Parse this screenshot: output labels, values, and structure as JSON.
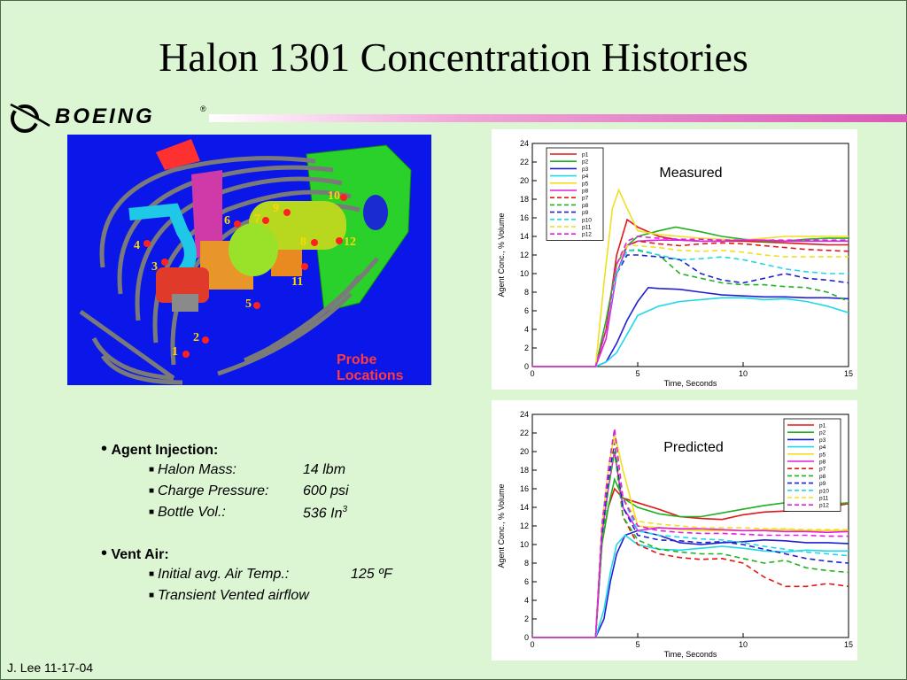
{
  "slide": {
    "title": "Halon 1301 Concentration Histories",
    "brand": "BOEING",
    "footer": "J. Lee 11-17-04"
  },
  "model_view": {
    "caption": "Probe Locations",
    "probes": [
      "1",
      "2",
      "3",
      "4",
      "5",
      "6",
      "7",
      "8",
      "9",
      "10",
      "11",
      "12"
    ],
    "colors": {
      "background": "#0a17e8",
      "probe": "#ff2020",
      "label": "#ffd700"
    }
  },
  "bullets": {
    "agent_injection": {
      "label": "Agent Injection:",
      "items": [
        {
          "name": "Halon Mass:",
          "value": "14 lbm"
        },
        {
          "name": "Charge Pressure:",
          "value": "600 psi"
        },
        {
          "name": "Bottle Vol.:",
          "value": "536 In",
          "sup": "3"
        }
      ]
    },
    "vent_air": {
      "label": "Vent Air:",
      "items": [
        {
          "name": "Initial avg. Air Temp.:",
          "value": "125 ºF"
        },
        {
          "name": "Transient Vented airflow",
          "value": ""
        }
      ]
    }
  },
  "chart_data": [
    {
      "type": "line",
      "title": "Measured",
      "xlabel": "Time, Seconds",
      "ylabel": "Agent Conc., % Volume",
      "xlim": [
        0,
        15
      ],
      "ylim": [
        0,
        24
      ],
      "xticks": [
        0,
        5,
        10,
        15
      ],
      "yticks": [
        0,
        2,
        4,
        6,
        8,
        10,
        12,
        14,
        16,
        18,
        20,
        22,
        24
      ],
      "legend_position": "top-left",
      "series": [
        {
          "name": "p1",
          "color": "#e01818",
          "dash": "solid",
          "x": [
            0,
            3,
            3.5,
            4,
            4.5,
            5,
            6,
            7,
            8,
            9,
            10,
            11,
            12,
            13,
            14,
            15
          ],
          "y": [
            0,
            0,
            4,
            12,
            15.8,
            15,
            14,
            13.6,
            13.5,
            13.5,
            13.5,
            13.4,
            13.3,
            13.2,
            13.1,
            13.1
          ]
        },
        {
          "name": "p2",
          "color": "#20b020",
          "dash": "solid",
          "x": [
            0,
            3,
            3.5,
            4,
            4.5,
            5,
            6,
            6.8,
            8,
            9,
            10,
            11,
            12,
            13,
            14,
            15
          ],
          "y": [
            0,
            0,
            5,
            11,
            13,
            14,
            14.6,
            15,
            14.5,
            14,
            13.7,
            13.5,
            13.5,
            13.7,
            13.8,
            13.8
          ]
        },
        {
          "name": "p3",
          "color": "#2020d0",
          "dash": "solid",
          "x": [
            0,
            3,
            3.5,
            4,
            4.5,
            5,
            5.5,
            6,
            7,
            8,
            9,
            10,
            11,
            12,
            13,
            14,
            15
          ],
          "y": [
            0,
            0,
            0.5,
            2.5,
            5,
            7,
            8.5,
            8.4,
            8.3,
            8,
            7.7,
            7.6,
            7.5,
            7.5,
            7.4,
            7.4,
            7.3
          ]
        },
        {
          "name": "p4",
          "color": "#20d8e8",
          "dash": "solid",
          "x": [
            0,
            3,
            3.5,
            4,
            4.5,
            5,
            6,
            7,
            8,
            9,
            10,
            11,
            12,
            13,
            14,
            15
          ],
          "y": [
            0,
            0,
            0.5,
            1.5,
            3.5,
            5.5,
            6.5,
            7,
            7.2,
            7.4,
            7.4,
            7.2,
            7.3,
            7,
            6.5,
            5.8
          ]
        },
        {
          "name": "p5",
          "color": "#f0e020",
          "dash": "solid",
          "x": [
            0,
            3,
            3.4,
            3.8,
            4.1,
            4.5,
            5,
            6,
            7,
            8,
            9,
            10,
            11,
            12,
            13,
            14,
            15
          ],
          "y": [
            0,
            0,
            9,
            17,
            19,
            17,
            14.6,
            14.2,
            14,
            13.8,
            13.7,
            13.6,
            13.8,
            14,
            14,
            14,
            14
          ]
        },
        {
          "name": "p8",
          "color": "#e020e0",
          "dash": "solid",
          "x": [
            0,
            3,
            3.5,
            4,
            4.5,
            5,
            6,
            7,
            8,
            9,
            10,
            11,
            12,
            13,
            14,
            15
          ],
          "y": [
            0,
            0,
            3,
            10,
            13,
            13.5,
            13.6,
            13.6,
            13.5,
            13.5,
            13.6,
            13.6,
            13.5,
            13.5,
            13.5,
            13.5
          ]
        },
        {
          "name": "p7",
          "color": "#e01818",
          "dash": "dashed",
          "x": [
            0,
            3,
            3.5,
            4,
            4.5,
            5,
            6,
            7,
            8,
            9,
            10,
            11,
            12,
            13,
            14,
            15
          ],
          "y": [
            0,
            0,
            4,
            11,
            13,
            13.5,
            13.2,
            13,
            13.2,
            13.3,
            13.2,
            13,
            12.8,
            12.6,
            12.5,
            12.4
          ]
        },
        {
          "name": "p8",
          "color": "#20b020",
          "dash": "dashed",
          "x": [
            0,
            3,
            3.5,
            4,
            4.5,
            5,
            6,
            7,
            8,
            9,
            10,
            11,
            12,
            13,
            14,
            15
          ],
          "y": [
            0,
            0,
            4,
            10,
            12.5,
            12.5,
            12,
            10,
            9.5,
            9,
            8.8,
            8.8,
            8.6,
            8.5,
            8,
            7
          ]
        },
        {
          "name": "p9",
          "color": "#2020d0",
          "dash": "dashed",
          "x": [
            0,
            3,
            3.5,
            4,
            4.5,
            5,
            6,
            7,
            8,
            9,
            10,
            11,
            12,
            13,
            14,
            15
          ],
          "y": [
            0,
            0,
            4,
            10,
            12,
            12,
            11.8,
            11.5,
            10,
            9.3,
            9,
            9.5,
            10,
            9.5,
            9.3,
            9
          ]
        },
        {
          "name": "p10",
          "color": "#20d8e8",
          "dash": "dashed",
          "x": [
            0,
            3,
            3.5,
            4,
            4.5,
            5,
            6,
            7,
            8,
            9,
            10,
            11,
            12,
            13,
            14,
            15
          ],
          "y": [
            0,
            0,
            4,
            10,
            12.5,
            12.6,
            12,
            11.5,
            11.6,
            11.8,
            11.5,
            11,
            10.5,
            10.2,
            10,
            10
          ]
        },
        {
          "name": "p11",
          "color": "#f0e020",
          "dash": "dashed",
          "x": [
            0,
            3,
            3.5,
            4,
            4.5,
            5,
            6,
            7,
            8,
            9,
            10,
            11,
            12,
            13,
            14,
            15
          ],
          "y": [
            0,
            0,
            4,
            11,
            13,
            13,
            12.8,
            12.5,
            12.4,
            12.5,
            12.3,
            12,
            11.8,
            11.8,
            11.8,
            11.8
          ]
        },
        {
          "name": "p12",
          "color": "#e020e0",
          "dash": "dashed",
          "x": [
            0,
            3,
            3.5,
            4,
            4.5,
            5,
            6,
            7,
            8,
            9,
            10,
            11,
            12,
            13,
            14,
            15
          ],
          "y": [
            0,
            0,
            4,
            11,
            13.5,
            14,
            13.8,
            13.7,
            13.7,
            13.6,
            13.6,
            13.6,
            13.6,
            13.6,
            13.6,
            13.6
          ]
        }
      ]
    },
    {
      "type": "line",
      "title": "Predicted",
      "xlabel": "Time, Seconds",
      "ylabel": "Agent Conc., % Volume",
      "xlim": [
        0,
        15
      ],
      "ylim": [
        0,
        24
      ],
      "xticks": [
        0,
        5,
        10,
        15
      ],
      "yticks": [
        0,
        2,
        4,
        6,
        8,
        10,
        12,
        14,
        16,
        18,
        20,
        22,
        24
      ],
      "legend_position": "top-right",
      "series": [
        {
          "name": "p1",
          "color": "#e01818",
          "dash": "solid",
          "x": [
            0,
            3,
            3.3,
            3.6,
            3.9,
            4.3,
            5,
            6,
            7,
            8,
            9,
            10,
            11,
            12,
            13,
            14,
            15
          ],
          "y": [
            0,
            0,
            10,
            14,
            16,
            15,
            14.5,
            13.8,
            13,
            12.8,
            12.7,
            13.2,
            13.5,
            13.6,
            13.8,
            14,
            14.4
          ]
        },
        {
          "name": "p2",
          "color": "#20b020",
          "dash": "solid",
          "x": [
            0,
            3,
            3.3,
            3.6,
            3.9,
            4.3,
            5,
            6,
            7,
            8,
            9,
            10,
            11,
            12,
            13,
            14,
            15
          ],
          "y": [
            0,
            0,
            10,
            14,
            17,
            15,
            14,
            13.3,
            13,
            13,
            13.4,
            13.8,
            14.2,
            14.5,
            14.4,
            14.3,
            14.5
          ]
        },
        {
          "name": "p3",
          "color": "#2020d0",
          "dash": "solid",
          "x": [
            0,
            3,
            3.4,
            3.7,
            4,
            4.4,
            5,
            6,
            7,
            8,
            9,
            10,
            11,
            12,
            13,
            14,
            15
          ],
          "y": [
            0,
            0,
            2,
            6,
            9,
            11,
            11.5,
            11,
            10.2,
            10,
            10.2,
            10.3,
            10.5,
            10.4,
            10.2,
            10.2,
            10.1
          ]
        },
        {
          "name": "p4",
          "color": "#20d8e8",
          "dash": "solid",
          "x": [
            0,
            3,
            3.4,
            3.7,
            4,
            4.4,
            5,
            6,
            7,
            8,
            9,
            10,
            11,
            12,
            13,
            14,
            15
          ],
          "y": [
            0,
            0,
            3,
            7,
            10,
            11,
            10,
            9.5,
            9.4,
            9.6,
            9.8,
            9.6,
            9.3,
            9.2,
            9.4,
            9.3,
            9.3
          ]
        },
        {
          "name": "p5",
          "color": "#f0e020",
          "dash": "solid",
          "x": [
            0,
            3,
            3.3,
            3.6,
            3.9,
            4.3,
            5,
            6,
            7,
            8,
            9,
            10,
            11,
            12,
            13,
            14,
            15
          ],
          "y": [
            0,
            0,
            12,
            18,
            22,
            18,
            12,
            11.8,
            11.6,
            11.5,
            11.5,
            11.5,
            11.6,
            11.6,
            11.5,
            11.5,
            11.5
          ]
        },
        {
          "name": "p8",
          "color": "#e020e0",
          "dash": "solid",
          "x": [
            0,
            3,
            3.3,
            3.6,
            3.9,
            4.3,
            5,
            6,
            7,
            8,
            9,
            10,
            11,
            12,
            13,
            14,
            15
          ],
          "y": [
            0,
            0,
            11,
            16,
            20,
            14,
            11.5,
            11.8,
            11.7,
            11.7,
            11.6,
            11.5,
            11.5,
            11.4,
            11.4,
            11.3,
            11.4
          ]
        },
        {
          "name": "p7",
          "color": "#e01818",
          "dash": "dashed",
          "x": [
            0,
            3,
            3.3,
            3.6,
            3.9,
            4.3,
            5,
            6,
            7,
            8,
            9,
            10,
            11,
            12,
            13,
            14,
            15
          ],
          "y": [
            0,
            0,
            11,
            17,
            21,
            13,
            10,
            9,
            8.6,
            8.4,
            8.5,
            8,
            6.5,
            5.5,
            5.5,
            5.8,
            5.5
          ]
        },
        {
          "name": "p8",
          "color": "#20b020",
          "dash": "dashed",
          "x": [
            0,
            3,
            3.3,
            3.6,
            3.9,
            4.3,
            5,
            6,
            7,
            8,
            9,
            10,
            11,
            12,
            13,
            14,
            15
          ],
          "y": [
            0,
            0,
            10,
            16,
            20,
            13,
            10.5,
            9.5,
            9.2,
            9,
            9,
            8.5,
            8,
            8.3,
            7.5,
            7.2,
            7
          ]
        },
        {
          "name": "p9",
          "color": "#2020d0",
          "dash": "dashed",
          "x": [
            0,
            3,
            3.3,
            3.6,
            3.9,
            4.3,
            5,
            6,
            7,
            8,
            9,
            10,
            11,
            12,
            13,
            14,
            15
          ],
          "y": [
            0,
            0,
            11,
            17,
            21,
            14,
            11,
            10.5,
            10.4,
            10.2,
            10.3,
            10,
            9.5,
            9,
            8.5,
            8.2,
            8
          ]
        },
        {
          "name": "p10",
          "color": "#20d8e8",
          "dash": "dashed",
          "x": [
            0,
            3,
            3.3,
            3.6,
            3.9,
            4.3,
            5,
            6,
            7,
            8,
            9,
            10,
            11,
            12,
            13,
            14,
            15
          ],
          "y": [
            0,
            0,
            12,
            18,
            22,
            15,
            11.5,
            11,
            10.8,
            10.6,
            10.5,
            10.2,
            9.8,
            9.5,
            9.2,
            9,
            8.8
          ]
        },
        {
          "name": "p11",
          "color": "#f0e020",
          "dash": "dashed",
          "x": [
            0,
            3,
            3.3,
            3.6,
            3.9,
            4.3,
            5,
            6,
            7,
            8,
            9,
            10,
            11,
            12,
            13,
            14,
            15
          ],
          "y": [
            0,
            0,
            12,
            18,
            21.5,
            15,
            12.5,
            12.2,
            12,
            11.8,
            11.8,
            11.8,
            11.7,
            11.7,
            11.6,
            11.6,
            11.6
          ]
        },
        {
          "name": "p12",
          "color": "#e020e0",
          "dash": "dashed",
          "x": [
            0,
            3,
            3.3,
            3.6,
            3.9,
            4.3,
            5,
            6,
            7,
            8,
            9,
            10,
            11,
            12,
            13,
            14,
            15
          ],
          "y": [
            0,
            0,
            12,
            18,
            22.5,
            15,
            12,
            11.5,
            11.3,
            11.2,
            11.2,
            11.1,
            11,
            11,
            11,
            10.9,
            10.9
          ]
        }
      ]
    }
  ]
}
